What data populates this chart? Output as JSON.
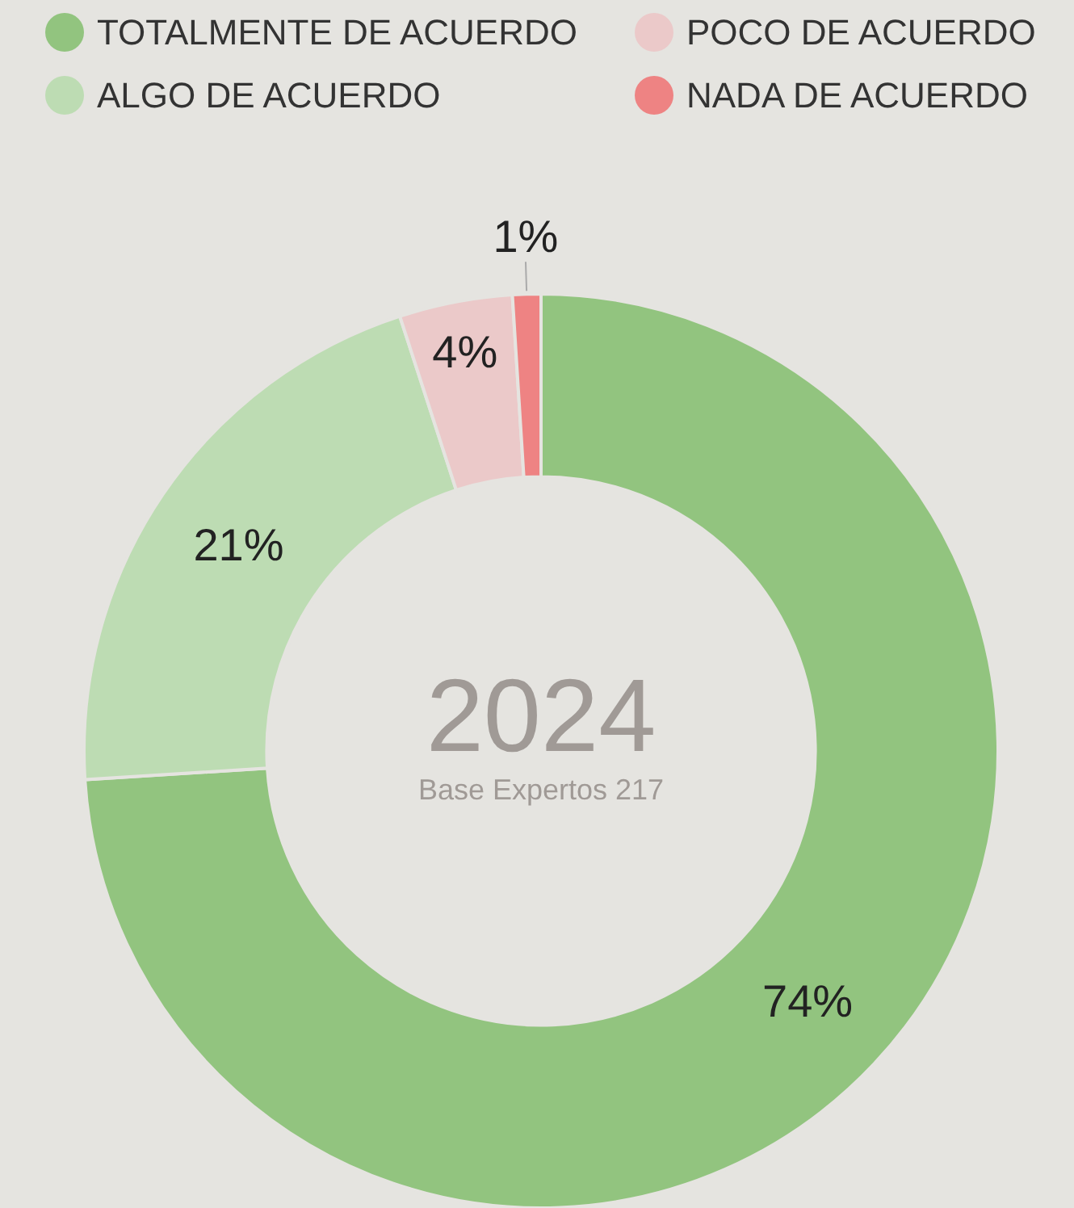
{
  "chart_data": {
    "type": "donut",
    "title": "2024",
    "subtitle": "Base Expertos 217",
    "categories": [
      "TOTALMENTE DE ACUERDO",
      "ALGO DE ACUERDO",
      "POCO DE ACUERDO",
      "NADA DE ACUERDO"
    ],
    "values": [
      74,
      21,
      4,
      1
    ],
    "colors": [
      "#92c47f",
      "#bddcb3",
      "#ebc9c9",
      "#ee8383"
    ],
    "value_labels": [
      "74%",
      "21%",
      "4%",
      "1%"
    ],
    "legend": "top left"
  }
}
